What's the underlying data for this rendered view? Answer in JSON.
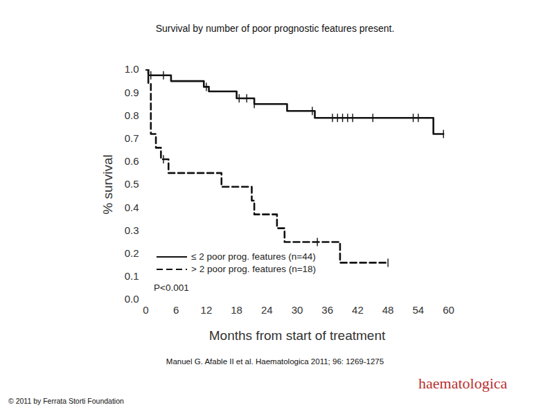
{
  "chart_data": {
    "type": "line",
    "title": "Survival by number of poor prognostic features present.",
    "xlabel": "Months from start of treatment",
    "ylabel": "% survival",
    "xlim": [
      0,
      60
    ],
    "ylim": [
      0,
      1
    ],
    "xticks": [
      0,
      6,
      12,
      18,
      24,
      30,
      36,
      42,
      48,
      54,
      60
    ],
    "yticks": [
      {
        "value": 0,
        "label": "0.0"
      },
      {
        "value": 0.1,
        "label": "0.1"
      },
      {
        "value": 0.2,
        "label": "0.2"
      },
      {
        "value": 0.3,
        "label": "0.3"
      },
      {
        "value": 0.4,
        "label": "0.4"
      },
      {
        "value": 0.5,
        "label": "0.5"
      },
      {
        "value": 0.6,
        "label": "0.6"
      },
      {
        "value": 0.7,
        "label": "0.7"
      },
      {
        "value": 0.8,
        "label": "0.8"
      },
      {
        "value": 0.9,
        "label": "0.9"
      },
      {
        "value": 1,
        "label": "1.0"
      }
    ],
    "grid": false,
    "legend": "lower left",
    "series": [
      {
        "name": "≤ 2 poor prog. features (n=44)",
        "color": "#111111",
        "line_style": "solid",
        "marker": "vertical_tick",
        "x": [
          0,
          0.5,
          5,
          11.5,
          12.5,
          18,
          21.5,
          28,
          33.5,
          57,
          59
        ],
        "values": [
          1.0,
          0.975,
          0.95,
          0.925,
          0.905,
          0.875,
          0.85,
          0.82,
          0.79,
          0.72,
          0.72
        ],
        "censored": {
          "x": [
            1,
            3.5,
            12,
            18.5,
            20,
            21.5,
            33,
            37,
            38,
            39,
            40,
            41,
            45,
            53,
            54,
            59
          ],
          "values": [
            0.975,
            0.975,
            0.925,
            0.875,
            0.875,
            0.85,
            0.82,
            0.79,
            0.79,
            0.79,
            0.79,
            0.79,
            0.79,
            0.79,
            0.79,
            0.72
          ]
        }
      },
      {
        "name": "> 2 poor prog. features (n=18)",
        "color": "#111111",
        "line_style": "dashed",
        "marker": "vertical_tick",
        "x": [
          0,
          0.5,
          1,
          2,
          3,
          4.5,
          15,
          21,
          21.5,
          26,
          27.5,
          38.5,
          48
        ],
        "values": [
          1.0,
          0.94,
          0.72,
          0.66,
          0.61,
          0.55,
          0.49,
          0.43,
          0.37,
          0.31,
          0.25,
          0.16,
          0.16
        ],
        "censored": {
          "x": [
            3.5,
            34,
            48
          ],
          "values": [
            0.61,
            0.25,
            0.16
          ]
        }
      }
    ],
    "annotation": "P<0.001",
    "caption": "Manuel G. Afable II et al. Haematologica 2011; 96: 1269-1275",
    "copyright": "© 2011 by Ferrata Storti Foundation",
    "logo": "haematologica"
  }
}
